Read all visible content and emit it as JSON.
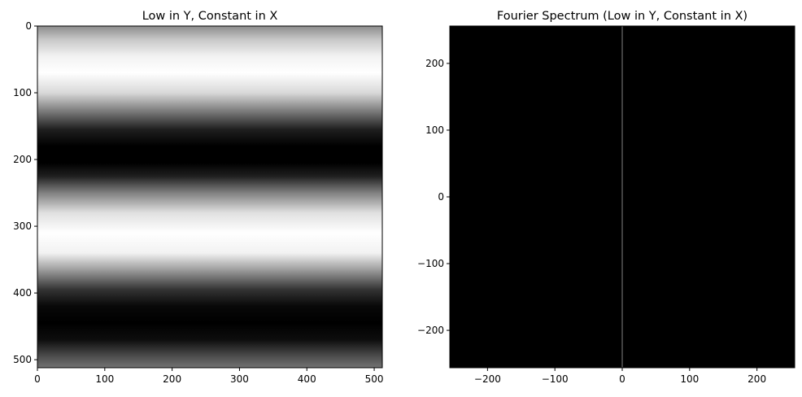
{
  "chart_data": [
    {
      "type": "heatmap",
      "title": "Low in Y, Constant in X",
      "description_values": {
        "pattern": "cosine in Y, constant in X",
        "image_size": [
          512,
          512
        ],
        "origin": "upper",
        "colormap": "gray",
        "intensity_profile_y": [
          [
            0,
            0.55
          ],
          [
            20,
            0.78
          ],
          [
            45,
            0.95
          ],
          [
            70,
            1.0
          ],
          [
            100,
            0.85
          ],
          [
            130,
            0.45
          ],
          [
            155,
            0.12
          ],
          [
            180,
            0.0
          ],
          [
            205,
            0.0
          ],
          [
            225,
            0.12
          ],
          [
            250,
            0.5
          ],
          [
            280,
            0.88
          ],
          [
            310,
            1.0
          ],
          [
            340,
            0.95
          ],
          [
            365,
            0.62
          ],
          [
            395,
            0.2
          ],
          [
            420,
            0.03
          ],
          [
            445,
            0.0
          ],
          [
            470,
            0.05
          ],
          [
            495,
            0.3
          ],
          [
            512,
            0.45
          ]
        ]
      },
      "xlim": [
        0,
        512
      ],
      "ylim": [
        512,
        0
      ],
      "xticks": [
        "0",
        "100",
        "200",
        "300",
        "400",
        "500"
      ],
      "yticks": [
        "0",
        "100",
        "200",
        "300",
        "400",
        "500"
      ]
    },
    {
      "type": "heatmap",
      "title": "Fourier Spectrum (Low in Y, Constant in X)",
      "description_values": {
        "background": "black",
        "vertical_line_at_x": 0,
        "line_intensity": 0.35,
        "colormap": "gray"
      },
      "xlim": [
        -256,
        256
      ],
      "ylim": [
        -256,
        256
      ],
      "xticks": [
        "−200",
        "−100",
        "0",
        "100",
        "200"
      ],
      "yticks": [
        "200",
        "100",
        "0",
        "−100",
        "−200"
      ]
    }
  ]
}
